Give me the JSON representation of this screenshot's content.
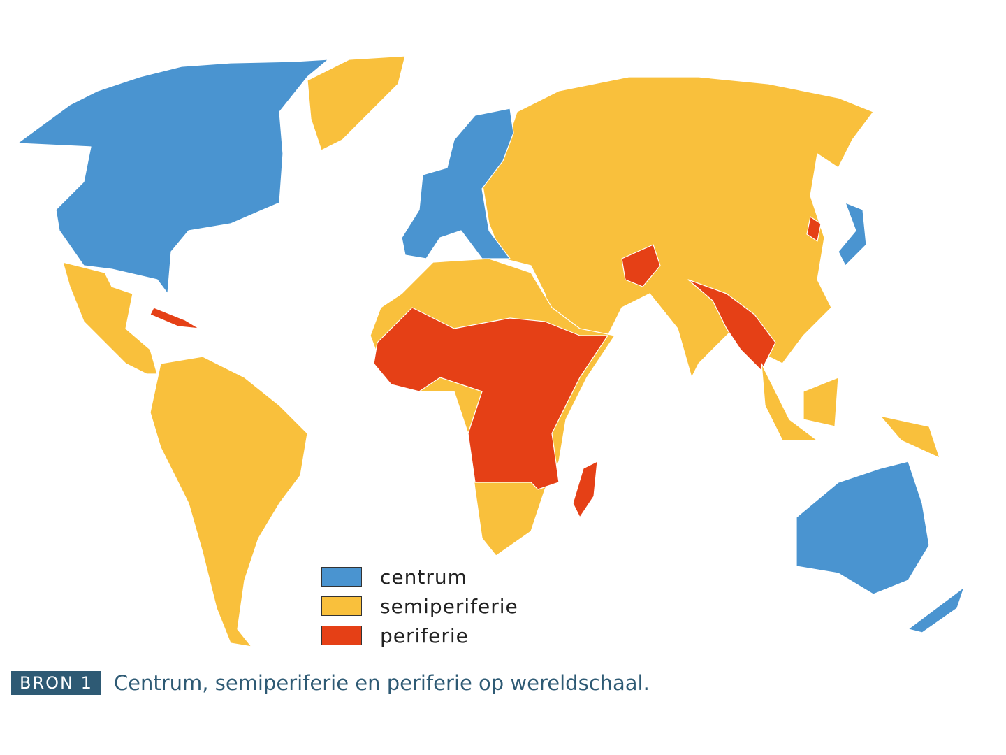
{
  "map": {
    "colors": {
      "centrum": "#4a94d0",
      "semiperiferie": "#f9c03c",
      "periferie": "#e54016",
      "coast": "#3aa6c4"
    },
    "legend": [
      {
        "key": "centrum",
        "label": "centrum",
        "color": "#4a94d0"
      },
      {
        "key": "semiperiferie",
        "label": "semiperiferie",
        "color": "#f9c03c"
      },
      {
        "key": "periferie",
        "label": "periferie",
        "color": "#e54016"
      }
    ]
  },
  "caption": {
    "source_label": "BRON 1",
    "text": "Centrum, semiperiferie en periferie op wereldschaal."
  }
}
